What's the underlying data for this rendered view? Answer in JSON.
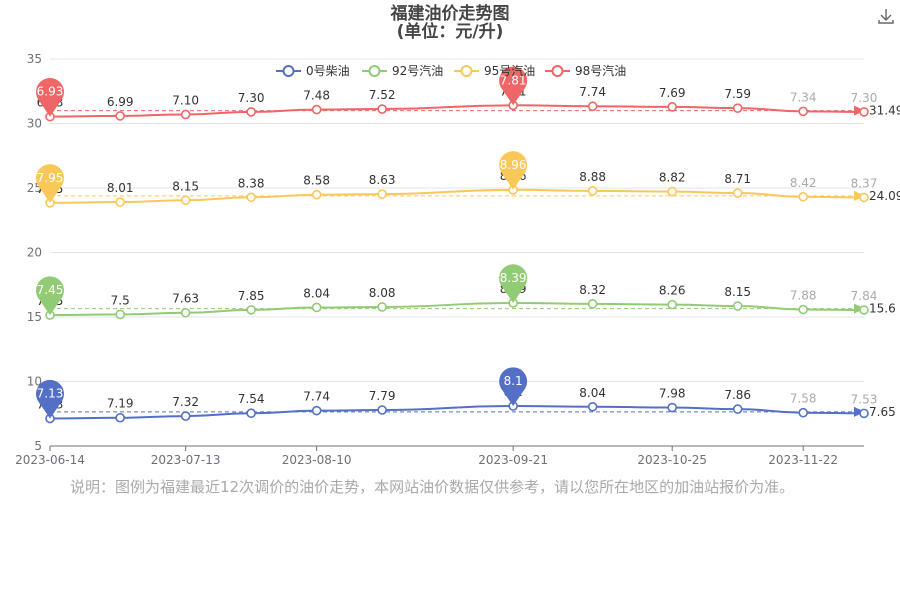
{
  "title_line1": "福建油价走势图",
  "title_line2": "(单位：元/升)",
  "download_icon": "download-icon",
  "note": "说明：图例为福建最近12次调价的油价走势，本网站油价数据仅供参考，请以您所在地区的加油站报价为准。",
  "chart_data": {
    "type": "line",
    "x": [
      "2023-06-14",
      "2023-06-29",
      "2023-07-13",
      "2023-07-27",
      "2023-08-10",
      "2023-08-24",
      "2023-09-21",
      "2023-10-08",
      "2023-10-25",
      "2023-11-08",
      "2023-11-22",
      "2023-12-05"
    ],
    "x_tick_labels": [
      "2023-06-14",
      "2023-07-13",
      "2023-08-10",
      "2023-09-21",
      "2023-10-25",
      "2023-11-22"
    ],
    "ylim": [
      5,
      35
    ],
    "y_ticks": [
      5,
      10,
      15,
      20,
      25,
      30,
      35
    ],
    "grid": true,
    "legend_position": "top",
    "series": [
      {
        "name": "0号柴油",
        "color": "#5470c6",
        "values": [
          7.13,
          7.19,
          7.32,
          7.54,
          7.74,
          7.79,
          8.1,
          8.04,
          7.98,
          7.86,
          7.58,
          7.53
        ],
        "labels": [
          "7.13",
          "7.19",
          "7.32",
          "7.54",
          "7.74",
          "7.79",
          "8.1",
          "8.04",
          "7.98",
          "7.86",
          "7.58",
          "7.53"
        ],
        "max_label": "8.1",
        "min_label": "7.13",
        "average_label": "7.65"
      },
      {
        "name": "92号汽油",
        "color": "#91cc75",
        "values": [
          7.45,
          7.5,
          7.63,
          7.85,
          8.04,
          8.08,
          8.39,
          8.32,
          8.26,
          8.15,
          7.88,
          7.84
        ],
        "labels": [
          "7.45",
          "7.5",
          "7.63",
          "7.85",
          "8.04",
          "8.08",
          "8.39",
          "8.32",
          "8.26",
          "8.15",
          "7.88",
          "7.84"
        ],
        "max_label": "8.39",
        "min_label": "7.45",
        "average_label": "15.6"
      },
      {
        "name": "95号汽油",
        "color": "#fac858",
        "values": [
          7.95,
          8.01,
          8.15,
          8.38,
          8.58,
          8.63,
          8.96,
          8.88,
          8.82,
          8.71,
          8.42,
          8.37
        ],
        "labels": [
          "7.95",
          "8.01",
          "8.15",
          "8.38",
          "8.58",
          "8.63",
          "8.96",
          "8.88",
          "8.82",
          "8.71",
          "8.42",
          "8.37"
        ],
        "max_label": "8.96",
        "min_label": "7.95",
        "average_label": "24.09"
      },
      {
        "name": "98号汽油",
        "color": "#ee6666",
        "values": [
          6.93,
          6.99,
          7.1,
          7.3,
          7.48,
          7.52,
          7.81,
          7.74,
          7.69,
          7.59,
          7.34,
          7.3
        ],
        "labels": [
          "6.93",
          "6.99",
          "7.10",
          "7.30",
          "7.48",
          "7.52",
          "7.81",
          "7.74",
          "7.69",
          "7.59",
          "7.34",
          "7.30"
        ],
        "max_label": "7.81",
        "min_label": "6.93",
        "average_label": "31.49"
      }
    ]
  }
}
